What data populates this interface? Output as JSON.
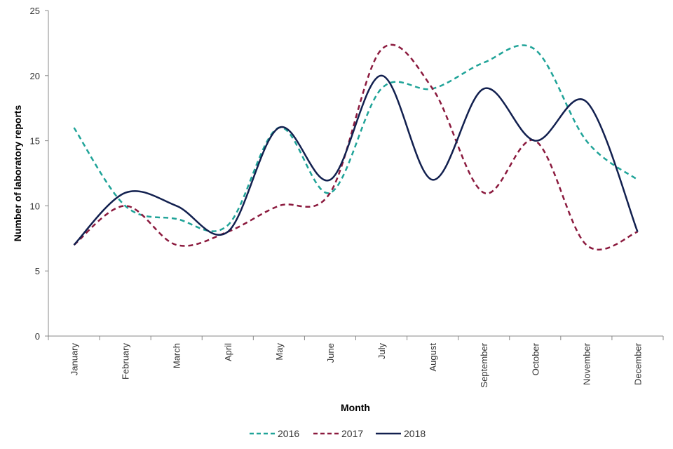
{
  "chart_data": {
    "type": "line",
    "title": "",
    "xlabel": "Month",
    "ylabel": "Number of laboratory reports",
    "ylim": [
      0,
      25
    ],
    "yticks": [
      0,
      5,
      10,
      15,
      20,
      25
    ],
    "grid": false,
    "legend_position": "bottom-center",
    "categories": [
      "January",
      "February",
      "March",
      "April",
      "May",
      "June",
      "July",
      "August",
      "September",
      "October",
      "November",
      "December"
    ],
    "series": [
      {
        "name": "2016",
        "color": "#1fa398",
        "style": "dashed",
        "values": [
          16,
          10,
          9,
          8.5,
          16,
          11,
          19,
          19,
          21,
          22,
          15,
          12
        ]
      },
      {
        "name": "2017",
        "color": "#8b1a3e",
        "style": "dashed",
        "values": [
          7,
          10,
          7,
          8,
          10,
          11,
          22,
          19,
          11,
          15,
          7,
          8
        ]
      },
      {
        "name": "2018",
        "color": "#12204f",
        "style": "solid",
        "values": [
          7,
          11,
          10,
          8,
          16,
          12,
          20,
          12,
          19,
          15,
          18,
          8
        ]
      }
    ]
  }
}
